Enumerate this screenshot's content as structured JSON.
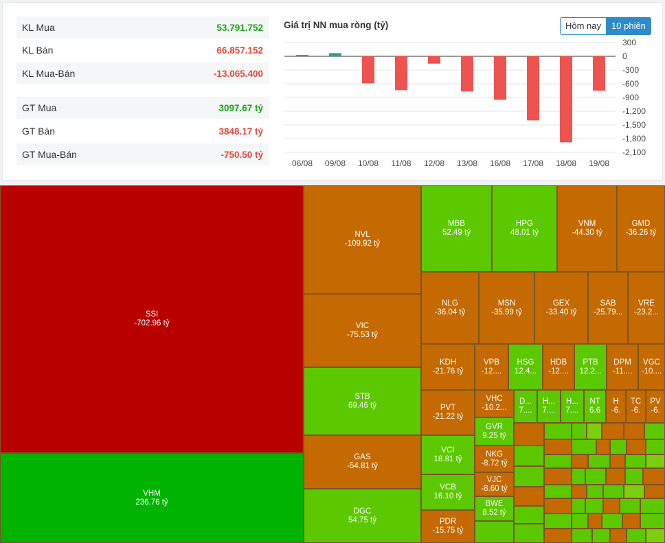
{
  "summary": {
    "volume": [
      {
        "label": "KL Mua",
        "value": "53.791.752",
        "tone": "green"
      },
      {
        "label": "KL Bán",
        "value": "66.857.152",
        "tone": "red"
      },
      {
        "label": "KL Mua-Bán",
        "value": "-13.065.400",
        "tone": "red"
      }
    ],
    "value": [
      {
        "label": "GT Mua",
        "value": "3097.67 tỷ",
        "tone": "green"
      },
      {
        "label": "GT Bán",
        "value": "3848.17 tỷ",
        "tone": "red"
      },
      {
        "label": "GT Mua-Bán",
        "value": "-750.50 tỷ",
        "tone": "red"
      }
    ]
  },
  "toggle": {
    "today_label": "Hôm nay",
    "sessions_label": "10 phiên",
    "active": "10 phiên"
  },
  "colors": {
    "positive_bar": "#26a69a",
    "negative_bar": "#ef5350"
  },
  "chart_data": {
    "type": "bar",
    "title": "Giá trị NN mua ròng (tỷ)",
    "categories": [
      "06/08",
      "09/08",
      "10/08",
      "11/08",
      "12/08",
      "13/08",
      "16/08",
      "17/08",
      "18/08",
      "19/08"
    ],
    "values": [
      30,
      70,
      -590,
      -740,
      -160,
      -770,
      -950,
      -1400,
      -1880,
      -750
    ],
    "ylim": [
      -2100,
      300
    ],
    "yticks": [
      300,
      0,
      -300,
      -600,
      -900,
      -1200,
      -1500,
      -1800,
      -2100
    ],
    "ytick_labels": [
      "300",
      "0",
      "-300",
      "-600",
      "-900",
      "-1,200",
      "-1,500",
      "-1,800",
      "-2,100"
    ],
    "xlabel": "",
    "ylabel": ""
  },
  "treemap": [
    {
      "t": "SSI",
      "v": "-702.96 tỷ",
      "c": "#b80000"
    },
    {
      "t": "VHM",
      "v": "236.76 tỷ",
      "c": "#00b300"
    },
    {
      "t": "NVL",
      "v": "-109.92 tỷ",
      "c": "#c46a00"
    },
    {
      "t": "VIC",
      "v": "-75.53 tỷ",
      "c": "#c46a00"
    },
    {
      "t": "STB",
      "v": "69.46 tỷ",
      "c": "#5cc800"
    },
    {
      "t": "GAS",
      "v": "-54.81 tỷ",
      "c": "#c46a00"
    },
    {
      "t": "DGC",
      "v": "54.75 tỷ",
      "c": "#5cc800"
    },
    {
      "t": "MBB",
      "v": "52.49 tỷ",
      "c": "#5cc800"
    },
    {
      "t": "HPG",
      "v": "48.01 tỷ",
      "c": "#5cc800"
    },
    {
      "t": "VNM",
      "v": "-44.30 tỷ",
      "c": "#c46a00"
    },
    {
      "t": "GMD",
      "v": "-36.26 tỷ",
      "c": "#c46a00"
    },
    {
      "t": "NLG",
      "v": "-36.04 tỷ",
      "c": "#c46a00"
    },
    {
      "t": "MSN",
      "v": "-35.99 tỷ",
      "c": "#c46a00"
    },
    {
      "t": "GEX",
      "v": "-33.40 tỷ",
      "c": "#c46a00"
    },
    {
      "t": "SAB",
      "v": "-25.79...",
      "c": "#c46a00"
    },
    {
      "t": "VRE",
      "v": "-23.2...",
      "c": "#c46a00"
    },
    {
      "t": "KDH",
      "v": "-21.76 tỷ",
      "c": "#c46a00"
    },
    {
      "t": "VPB",
      "v": "-12....",
      "c": "#c46a00"
    },
    {
      "t": "HSG",
      "v": "12.4...",
      "c": "#5cc800"
    },
    {
      "t": "HDB",
      "v": "-12....",
      "c": "#c46a00"
    },
    {
      "t": "PTB",
      "v": "12.2...",
      "c": "#5cc800"
    },
    {
      "t": "DPM",
      "v": "-11....",
      "c": "#c46a00"
    },
    {
      "t": "VGC",
      "v": "-10....",
      "c": "#c46a00"
    },
    {
      "t": "PVT",
      "v": "-21.22 tỷ",
      "c": "#c46a00"
    },
    {
      "t": "VHC",
      "v": "-10.2...",
      "c": "#c46a00"
    },
    {
      "t": "D...",
      "v": "7....",
      "c": "#5cc800"
    },
    {
      "t": "H...",
      "v": "7....",
      "c": "#5cc800"
    },
    {
      "t": "H...",
      "v": "7....",
      "c": "#5cc800"
    },
    {
      "t": "NT",
      "v": "6.6",
      "c": "#5cc800"
    },
    {
      "t": "H",
      "v": "-6.",
      "c": "#c46a00"
    },
    {
      "t": "TC",
      "v": "-6.",
      "c": "#c46a00"
    },
    {
      "t": "PV",
      "v": "-6.",
      "c": "#c46a00"
    },
    {
      "t": "GVR",
      "v": "9.25 tỷ",
      "c": "#5cc800"
    },
    {
      "t": "VCI",
      "v": "18.81 tỷ",
      "c": "#5cc800"
    },
    {
      "t": "NKG",
      "v": "-8.72 tỷ",
      "c": "#c46a00"
    },
    {
      "t": "VJC",
      "v": "-8.60 tỷ",
      "c": "#c46a00"
    },
    {
      "t": "VCB",
      "v": "16.10 tỷ",
      "c": "#5cc800"
    },
    {
      "t": "BWE",
      "v": "8.52 tỷ",
      "c": "#5cc800"
    },
    {
      "t": "PDR",
      "v": "-15.75 tỷ",
      "c": "#c46a00"
    }
  ]
}
